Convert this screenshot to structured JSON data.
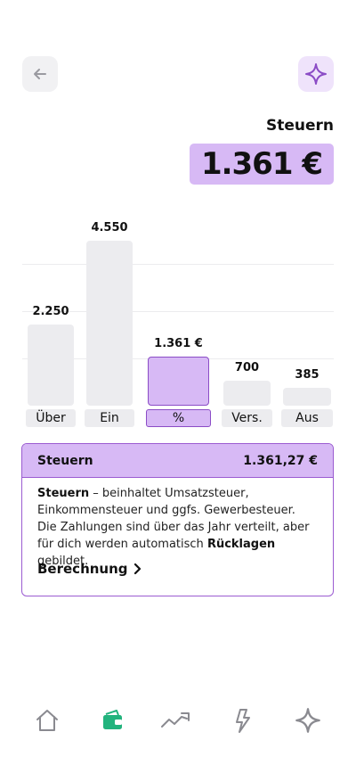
{
  "header": {
    "title": "Steuern",
    "amount": "1.361 €"
  },
  "chart_data": {
    "type": "bar",
    "categories": [
      "Über",
      "Ein",
      "%",
      "Vers.",
      "Aus"
    ],
    "values": [
      2250,
      4550,
      1361,
      700,
      385
    ],
    "value_labels": [
      "2.250",
      "4.550",
      "1.361 €",
      "700",
      "385"
    ],
    "active_index": 2,
    "grid": true
  },
  "card": {
    "title": "Steuern",
    "amount": "1.361,27 €",
    "desc_bold_1": "Steuern",
    "desc_1": " – beinhaltet Umsatzsteuer, Einkommensteuer und ggfs. Gewerbesteuer. Die Zahlungen sind über das Jahr verteilt, aber für dich werden automatisch ",
    "desc_bold_2": "Rücklagen",
    "desc_2": " gebildet.",
    "link_label": "Berechnung"
  },
  "colors": {
    "accent": "#d7b9f5",
    "accent_border": "#8b4cc6",
    "wallet_active": "#22b37d"
  },
  "nav": {
    "items": [
      "home-icon",
      "wallet-icon",
      "trend-icon",
      "bolt-icon",
      "sparkle-icon"
    ],
    "active": "wallet-icon"
  }
}
